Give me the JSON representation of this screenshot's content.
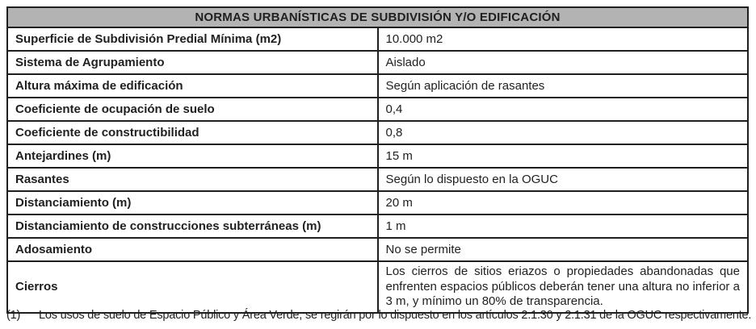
{
  "table": {
    "title": "NORMAS URBANÍSTICAS DE SUBDIVISIÓN Y/O EDIFICACIÓN",
    "rows": [
      {
        "label": "Superficie de Subdivisión Predial Mínima (m2)",
        "value": "10.000 m2"
      },
      {
        "label": "Sistema de Agrupamiento",
        "value": "Aislado"
      },
      {
        "label": "Altura máxima de edificación",
        "value": "Según aplicación de rasantes"
      },
      {
        "label": "Coeficiente de ocupación de suelo",
        "value": "0,4"
      },
      {
        "label": "Coeficiente de constructibilidad",
        "value": "0,8"
      },
      {
        "label": "Antejardines (m)",
        "value": "15 m"
      },
      {
        "label": "Rasantes",
        "value": "Según lo dispuesto en la OGUC"
      },
      {
        "label": "Distanciamiento (m)",
        "value": "20 m"
      },
      {
        "label": "Distanciamiento de construcciones subterráneas (m)",
        "value": "1 m"
      },
      {
        "label": "Adosamiento",
        "value": "No se permite"
      },
      {
        "label": "Cierros",
        "value": "Los cierros de sitios eriazos o propiedades abandonadas que enfrenten espacios públicos deberán tener una altura no inferior a 3 m, y mínimo un 80% de transparencia."
      }
    ]
  },
  "footnote": {
    "marker": "(1)",
    "text": "Los usos de suelo de Espacio Público y Área Verde, se regirán por lo dispuesto en los artículos 2.1.30 y 2.1.31 de la OGUC respectivamente."
  },
  "colors": {
    "header_bg": "#b3b3b3",
    "border": "#1f1f1f",
    "text": "#1f1f1f",
    "page_bg": "#ffffff"
  }
}
